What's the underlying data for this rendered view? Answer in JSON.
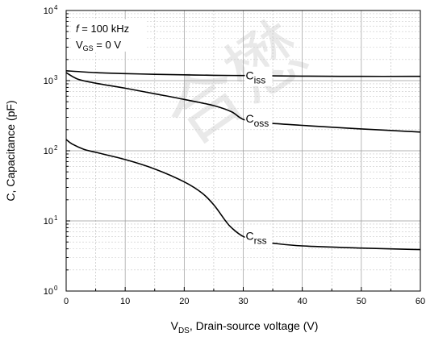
{
  "chart_data": {
    "type": "line",
    "title": "",
    "xlabel": {
      "main": "V",
      "sub": "DS",
      "rest": ", Drain-source voltage (V)"
    },
    "ylabel": "C, Capacitance (pF)",
    "xlim": [
      0,
      60
    ],
    "ylim": [
      1,
      10000
    ],
    "yscale": "log",
    "grid": true,
    "x_ticks": [
      "0",
      "10",
      "20",
      "30",
      "40",
      "50",
      "60"
    ],
    "y_ticks": [
      {
        "base": "10",
        "exp": "0"
      },
      {
        "base": "10",
        "exp": "1"
      },
      {
        "base": "10",
        "exp": "2"
      },
      {
        "base": "10",
        "exp": "3"
      },
      {
        "base": "10",
        "exp": "4"
      }
    ],
    "conditions": [
      {
        "italic": "f",
        "rest": " = 100 kHz"
      },
      {
        "main": "V",
        "sub": "GS",
        "rest": " = 0 V"
      }
    ],
    "series": [
      {
        "label_main": "C",
        "label_sub": "iss",
        "label_at": [
          30,
          1150
        ],
        "x": [
          0,
          5,
          10,
          15,
          20,
          25,
          30,
          35,
          40,
          50,
          60
        ],
        "y": [
          1380,
          1300,
          1260,
          1230,
          1210,
          1190,
          1180,
          1170,
          1160,
          1150,
          1150
        ]
      },
      {
        "label_main": "C",
        "label_sub": "oss",
        "label_at": [
          30,
          280
        ],
        "x": [
          0,
          2,
          5,
          10,
          15,
          20,
          25,
          28,
          30,
          33,
          35,
          40,
          50,
          60
        ],
        "y": [
          1300,
          1050,
          920,
          780,
          650,
          540,
          440,
          360,
          280,
          255,
          245,
          230,
          205,
          185
        ]
      },
      {
        "label_main": "C",
        "label_sub": "rss",
        "label_at": [
          30,
          6.0
        ],
        "x": [
          0,
          1,
          3,
          5,
          10,
          15,
          20,
          23,
          25,
          27,
          28,
          30,
          33,
          35,
          40,
          50,
          60
        ],
        "y": [
          145,
          125,
          105,
          95,
          75,
          55,
          36,
          25,
          17,
          10,
          8,
          6.0,
          5.0,
          4.8,
          4.4,
          4.1,
          3.9
        ]
      }
    ],
    "watermark": "合懋"
  }
}
